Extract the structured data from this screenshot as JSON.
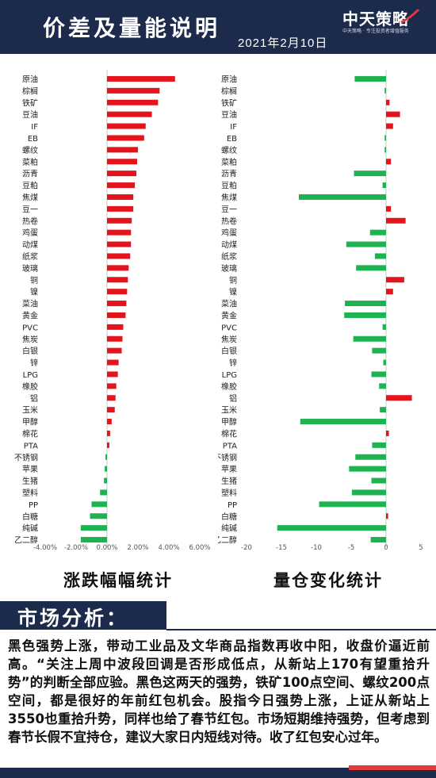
{
  "header": {
    "title": "价差及量能说明",
    "date": "2021年2月10日",
    "logo_text": "中天策略",
    "logo_sub": "中天策略 · 专注投资者增值服务"
  },
  "chart_data": [
    {
      "type": "bar",
      "orientation": "horizontal",
      "caption": "涨跌幅幅统计",
      "categories": [
        "原油",
        "棕榈",
        "铁矿",
        "豆油",
        "IF",
        "EB",
        "螺纹",
        "菜粕",
        "沥青",
        "豆粕",
        "焦煤",
        "豆一",
        "热卷",
        "鸡蛋",
        "动煤",
        "纸浆",
        "玻璃",
        "铜",
        "镍",
        "菜油",
        "黄金",
        "PVC",
        "焦炭",
        "白银",
        "锌",
        "LPG",
        "橡胶",
        "铝",
        "玉米",
        "甲醇",
        "棉花",
        "PTA",
        "不锈钢",
        "苹果",
        "生猪",
        "塑料",
        "PP",
        "白糖",
        "纯碱",
        "乙二醇"
      ],
      "values": [
        4.4,
        3.4,
        3.3,
        2.9,
        2.5,
        2.4,
        2.0,
        1.95,
        1.9,
        1.8,
        1.7,
        1.7,
        1.6,
        1.55,
        1.55,
        1.5,
        1.4,
        1.35,
        1.3,
        1.25,
        1.2,
        1.05,
        1.0,
        0.95,
        0.75,
        0.7,
        0.6,
        0.55,
        0.5,
        0.3,
        0.2,
        0.15,
        -0.1,
        -0.15,
        -0.2,
        -0.45,
        -1.0,
        -1.1,
        -1.7,
        -1.7
      ],
      "xlim": [
        -4,
        6
      ],
      "ticks": [
        "-4.00%",
        "-2.00%",
        "0.00%",
        "2.00%",
        "4.00%",
        "6.00%"
      ],
      "tick_values": [
        -4,
        -2,
        0,
        2,
        4,
        6
      ],
      "color_positive": "#e3141b",
      "color_negative": "#1fb251"
    },
    {
      "type": "bar",
      "orientation": "horizontal",
      "caption": "量仓变化统计",
      "categories": [
        "原油",
        "棕榈",
        "铁矿",
        "豆油",
        "IF",
        "EB",
        "螺纹",
        "菜粕",
        "沥青",
        "豆粕",
        "焦煤",
        "豆一",
        "热卷",
        "鸡蛋",
        "动煤",
        "纸浆",
        "玻璃",
        "铜",
        "镍",
        "菜油",
        "黄金",
        "PVC",
        "焦炭",
        "白银",
        "锌",
        "LPG",
        "橡胶",
        "铝",
        "玉米",
        "甲醇",
        "棉花",
        "PTA",
        "不锈钢",
        "苹果",
        "生猪",
        "塑料",
        "PP",
        "白糖",
        "纯碱",
        "乙二醇"
      ],
      "values": [
        -4.5,
        -0.2,
        0.5,
        2.0,
        1.0,
        -0.2,
        -0.2,
        0.7,
        -4.6,
        -0.5,
        -12.5,
        0.7,
        2.8,
        -2.3,
        -5.7,
        -1.6,
        -4.3,
        2.6,
        1.0,
        -5.9,
        -6.0,
        -0.5,
        -4.7,
        -2.0,
        -0.4,
        -2.1,
        -1.0,
        3.7,
        -0.9,
        -12.3,
        0.4,
        -2.0,
        -4.4,
        -5.3,
        -2.1,
        -4.9,
        -9.6,
        0.3,
        -15.6,
        -2.2
      ],
      "xlim": [
        -20,
        5
      ],
      "ticks": [
        "-20",
        "-15",
        "-10",
        "-5",
        "0",
        "5"
      ],
      "tick_values": [
        -20,
        -15,
        -10,
        -5,
        0,
        5
      ],
      "color_positive": "#e3141b",
      "color_negative": "#1fb251"
    }
  ],
  "analysis": {
    "title": "市场分析：",
    "body": "黑色强势上涨，带动工业品及文华商品指数再收中阳，收盘价逼近前高。“关注上周中波段回调是否形成低点，从新站上170有望重拾升势”的判断全部应验。黑色这两天的强势，铁矿100点空间、螺纹200点空间，都是很好的年前红包机会。股指今日强势上涨，上证从新站上3550也重拾升势，同样也给了春节红包。市场短期维持强势，但考虑到春节长假不宜持仓，建议大家日内短线对待。收了红包安心过年。"
  },
  "colors": {
    "navy": "#1c2a4c",
    "accent_red": "#e23b3b"
  }
}
